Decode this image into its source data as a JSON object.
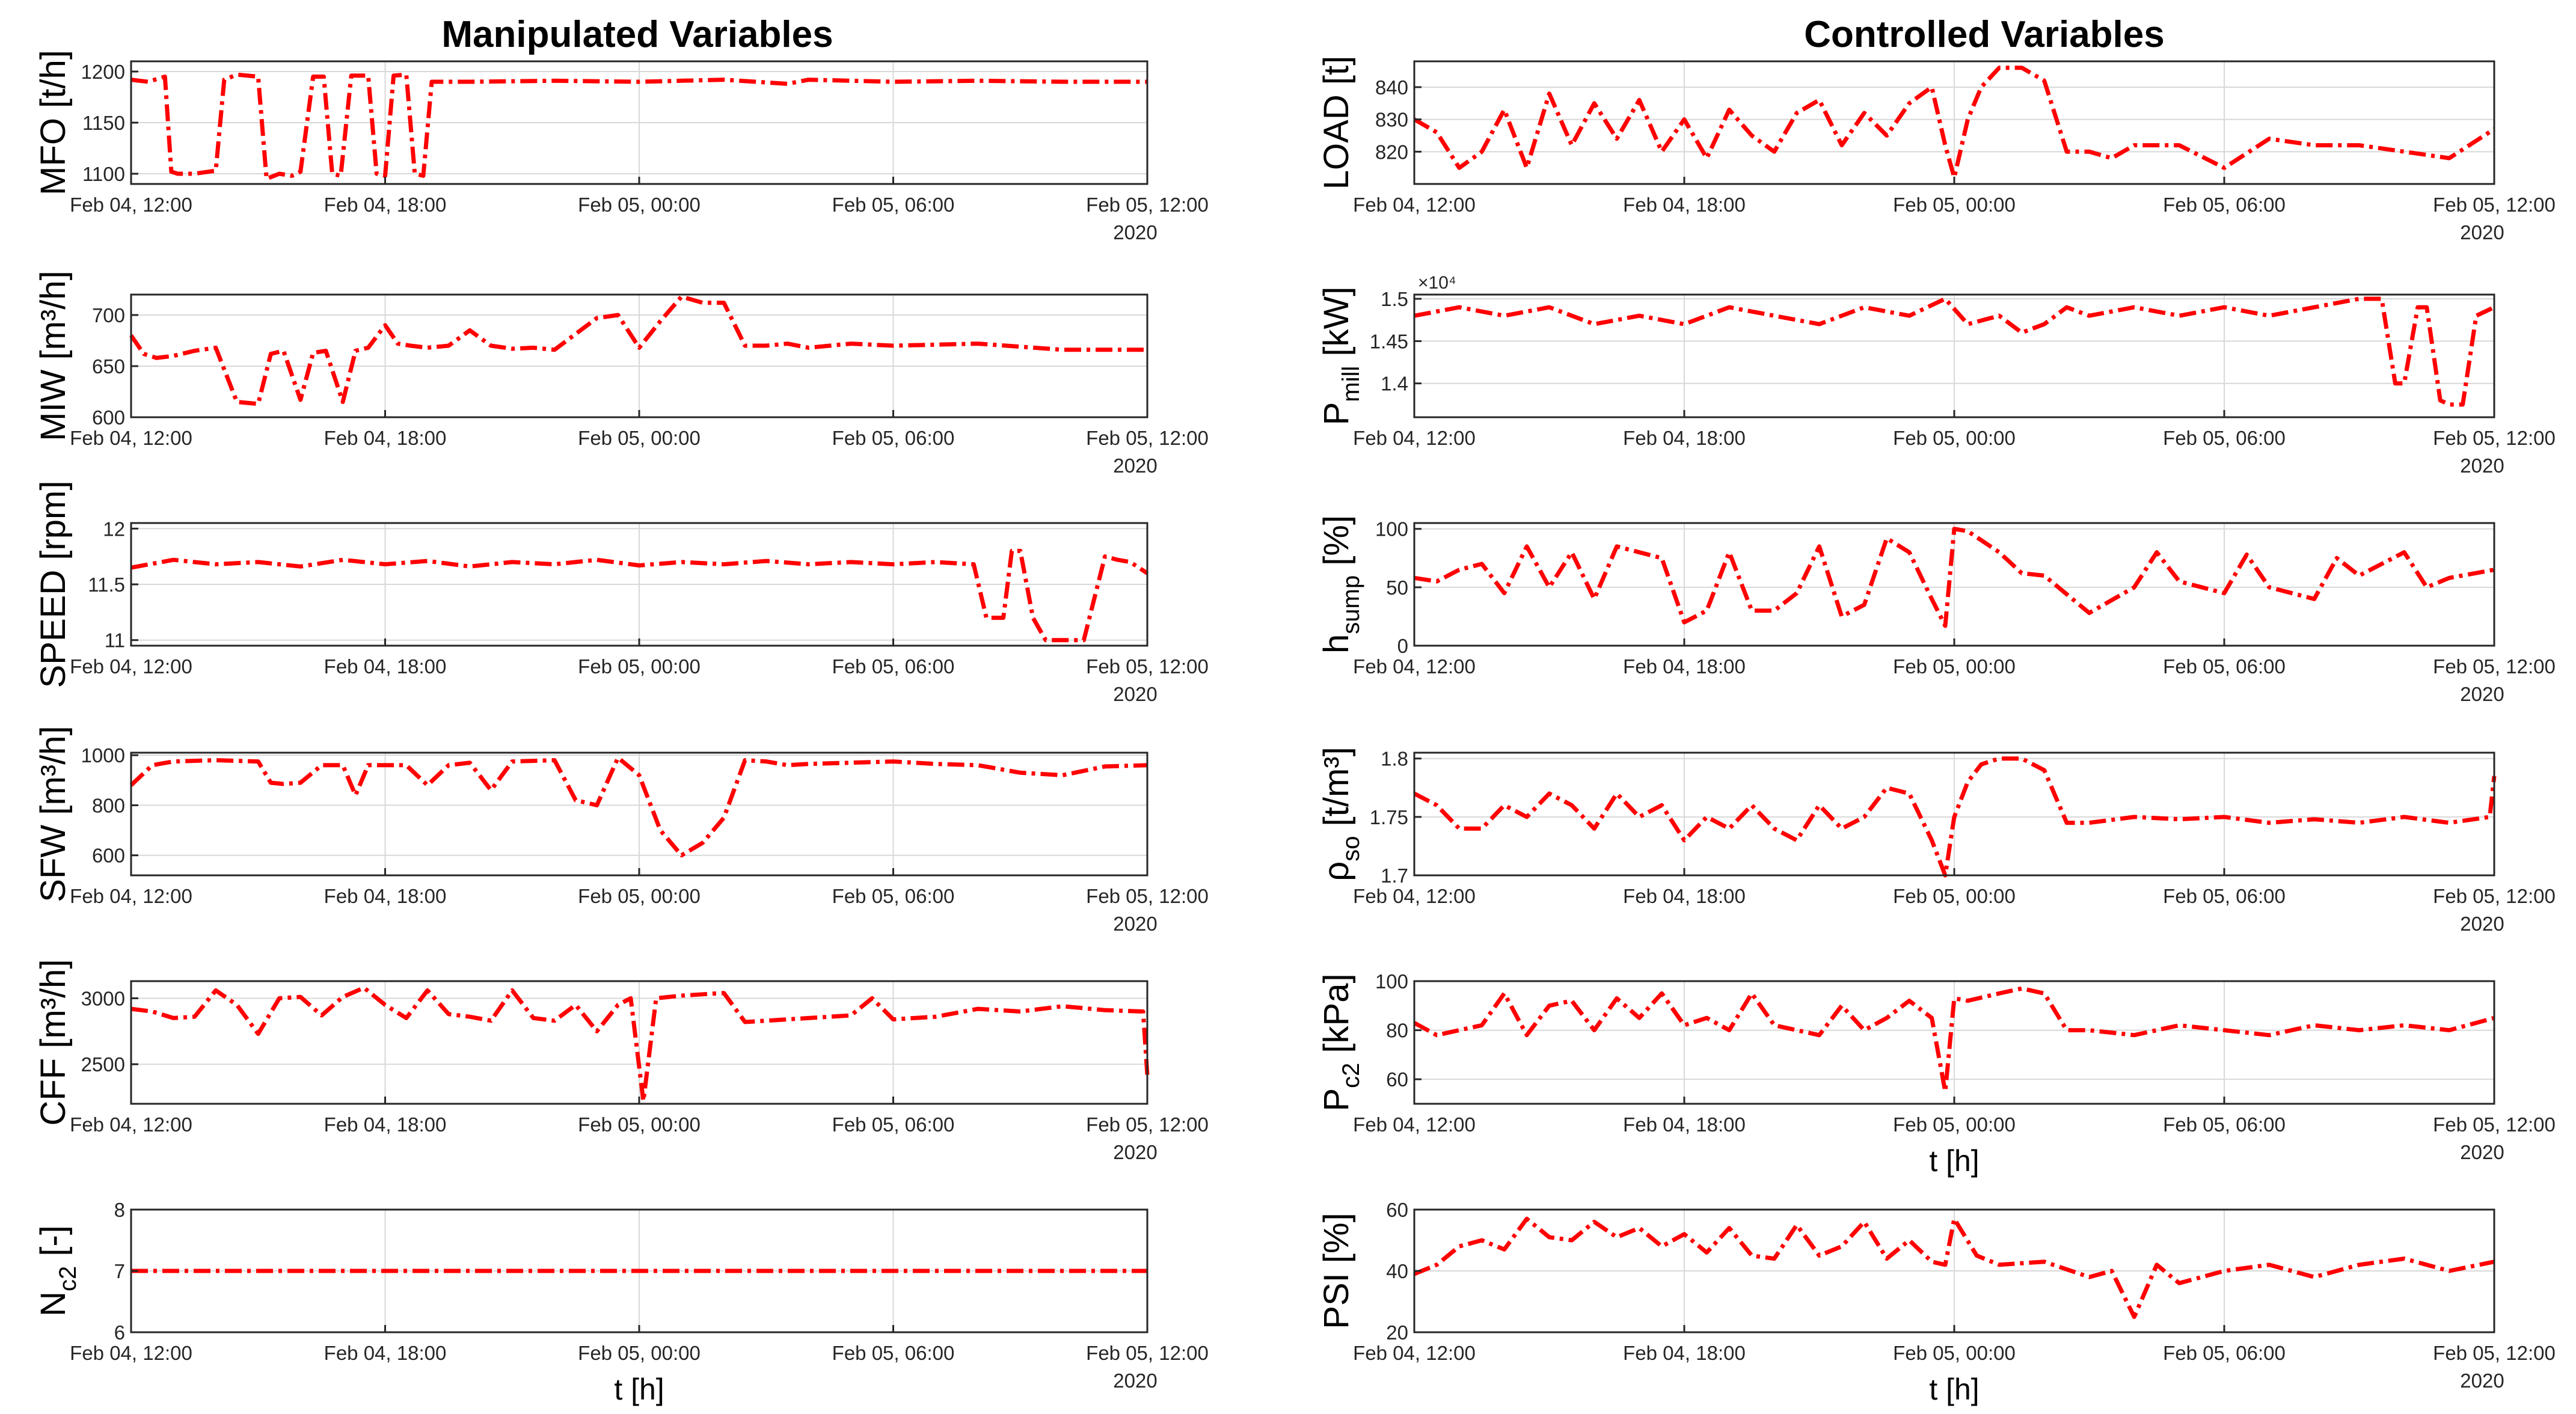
{
  "left_title": "Manipulated Variables",
  "right_title": "Controlled Variables",
  "x_tick_labels": [
    "Feb 04, 12:00",
    "Feb 04, 18:00",
    "Feb 05, 00:00",
    "Feb 05, 06:00",
    "Feb 05, 12:00"
  ],
  "x_year_label": "2020",
  "x_axis_label": "t [h]",
  "series_color": "#ff0000",
  "chart_data": [
    {
      "type": "line",
      "id": "mfo",
      "column": "left",
      "ylabel": "MFO [t/h]",
      "ylabel_main": "MFO [t/h]",
      "ylabel_sub": "",
      "ylim": [
        1090,
        1210
      ],
      "yticks": [
        1100,
        1150,
        1200
      ],
      "multiplier": "",
      "show_year": true,
      "show_xlabel": false,
      "x_hours": [
        0,
        0.4,
        0.8,
        0.95,
        1.1,
        1.5,
        2.0,
        2.2,
        2.5,
        3.0,
        3.2,
        3.5,
        3.8,
        4.0,
        4.3,
        4.55,
        4.75,
        4.95,
        5.2,
        5.6,
        5.8,
        6.0,
        6.2,
        6.5,
        6.7,
        6.9,
        7.1,
        8,
        10,
        12,
        14,
        15.5,
        16,
        18,
        20,
        22,
        24
      ],
      "values": [
        1192,
        1190,
        1195,
        1102,
        1100,
        1100,
        1103,
        1192,
        1197,
        1195,
        1095,
        1100,
        1098,
        1102,
        1195,
        1195,
        1100,
        1098,
        1196,
        1196,
        1100,
        1098,
        1196,
        1197,
        1100,
        1098,
        1190,
        1190,
        1191,
        1190,
        1192,
        1188,
        1192,
        1190,
        1191,
        1190,
        1190
      ]
    },
    {
      "type": "line",
      "id": "miw",
      "column": "left",
      "ylabel": "MIW [m3/h]",
      "ylabel_main": "MIW [m³/h]",
      "ylabel_sub": "",
      "ylim": [
        600,
        720
      ],
      "yticks": [
        600,
        650,
        700
      ],
      "multiplier": "",
      "show_year": true,
      "show_xlabel": false,
      "x_hours": [
        0,
        0.3,
        0.6,
        1,
        1.5,
        2.0,
        2.5,
        3.0,
        3.3,
        3.6,
        4.0,
        4.3,
        4.6,
        5.0,
        5.3,
        5.6,
        6.0,
        6.3,
        6.6,
        7.0,
        7.5,
        8.0,
        8.5,
        9.0,
        9.5,
        10,
        11,
        11.5,
        12,
        12.5,
        13,
        13.5,
        14,
        14.5,
        15,
        15.5,
        16,
        17,
        18,
        20,
        22,
        24
      ],
      "values": [
        680,
        662,
        658,
        660,
        665,
        668,
        615,
        613,
        662,
        665,
        617,
        663,
        665,
        615,
        665,
        668,
        690,
        672,
        670,
        668,
        670,
        685,
        670,
        667,
        668,
        666,
        697,
        700,
        668,
        694,
        718,
        712,
        712,
        670,
        670,
        672,
        668,
        672,
        670,
        672,
        666,
        666
      ]
    },
    {
      "type": "line",
      "id": "speed",
      "column": "left",
      "ylabel": "SPEED [rpm]",
      "ylabel_main": "SPEED [rpm]",
      "ylabel_sub": "",
      "ylim": [
        10.95,
        12.05
      ],
      "yticks": [
        11,
        11.5,
        12
      ],
      "multiplier": "",
      "show_year": true,
      "show_xlabel": false,
      "x_hours": [
        0,
        1,
        2,
        3,
        4,
        5,
        6,
        7,
        8,
        9,
        10,
        11,
        12,
        13,
        14,
        15,
        16,
        17,
        18,
        19,
        19.9,
        20.2,
        20.6,
        20.8,
        21.0,
        21.3,
        21.6,
        22.2,
        22.5,
        23.0,
        23.3,
        23.6,
        24
      ],
      "values": [
        11.65,
        11.72,
        11.68,
        11.7,
        11.66,
        11.72,
        11.68,
        11.71,
        11.66,
        11.7,
        11.68,
        11.72,
        11.67,
        11.7,
        11.68,
        11.71,
        11.68,
        11.7,
        11.68,
        11.7,
        11.68,
        11.2,
        11.2,
        11.8,
        11.8,
        11.2,
        11.0,
        11.0,
        11.0,
        11.75,
        11.72,
        11.7,
        11.6
      ]
    },
    {
      "type": "line",
      "id": "sfw",
      "column": "left",
      "ylabel": "SFW [m3/h]",
      "ylabel_main": "SFW [m³/h]",
      "ylabel_sub": "",
      "ylim": [
        520,
        1010
      ],
      "yticks": [
        600,
        800,
        1000
      ],
      "multiplier": "",
      "show_year": true,
      "show_xlabel": false,
      "x_hours": [
        0,
        0.5,
        1,
        2,
        3,
        3.3,
        3.6,
        4.0,
        4.5,
        5.0,
        5.3,
        5.6,
        6.0,
        6.5,
        7,
        7.5,
        8.0,
        8.5,
        9,
        10,
        10.5,
        11,
        11.5,
        12,
        12.5,
        13,
        13.5,
        14,
        14.5,
        15,
        15.5,
        16,
        17,
        18,
        19,
        20,
        21,
        22,
        23,
        24
      ],
      "values": [
        880,
        960,
        975,
        980,
        975,
        890,
        885,
        890,
        960,
        960,
        840,
        960,
        960,
        960,
        880,
        960,
        970,
        860,
        975,
        980,
        820,
        800,
        990,
        920,
        700,
        600,
        650,
        750,
        980,
        975,
        960,
        965,
        970,
        975,
        965,
        960,
        930,
        920,
        955,
        960
      ]
    },
    {
      "type": "line",
      "id": "cff",
      "column": "left",
      "ylabel": "CFF [m3/h]",
      "ylabel_main": "CFF [m³/h]",
      "ylabel_sub": "",
      "ylim": [
        2200,
        3130
      ],
      "yticks": [
        2500,
        3000
      ],
      "multiplier": "",
      "show_year": true,
      "show_xlabel": false,
      "x_hours": [
        0,
        0.5,
        1,
        1.5,
        2,
        2.5,
        3.0,
        3.5,
        4.0,
        4.5,
        5.0,
        5.5,
        6.0,
        6.5,
        7.0,
        7.5,
        8.0,
        8.5,
        9.0,
        9.5,
        10,
        10.5,
        11,
        11.5,
        11.8,
        12.1,
        12.4,
        13,
        14,
        14.5,
        15,
        16,
        17,
        17.5,
        18,
        19,
        20,
        21,
        22,
        23,
        23.9,
        24
      ],
      "values": [
        2920,
        2900,
        2850,
        2860,
        3060,
        2950,
        2730,
        3000,
        3010,
        2870,
        3010,
        3080,
        2950,
        2850,
        3060,
        2880,
        2860,
        2830,
        3060,
        2850,
        2830,
        2950,
        2750,
        2950,
        3000,
        2220,
        3000,
        3020,
        3040,
        2820,
        2830,
        2850,
        2870,
        3000,
        2840,
        2860,
        2920,
        2900,
        2940,
        2910,
        2900,
        2420
      ]
    },
    {
      "type": "line",
      "id": "nc2",
      "column": "left",
      "ylabel": "Nc2 [-]",
      "ylabel_main": "N",
      "ylabel_sub": "c2",
      "ylabel_tail": " [-]",
      "ylim": [
        6,
        8
      ],
      "yticks": [
        6,
        7,
        8
      ],
      "multiplier": "",
      "show_year": true,
      "show_xlabel": true,
      "x_hours": [
        0,
        24
      ],
      "values": [
        7,
        7
      ]
    },
    {
      "type": "line",
      "id": "load",
      "column": "right",
      "ylabel": "LOAD [t]",
      "ylabel_main": "LOAD [t]",
      "ylabel_sub": "",
      "ylim": [
        810,
        848
      ],
      "yticks": [
        820,
        830,
        840
      ],
      "multiplier": "",
      "show_year": true,
      "show_xlabel": false,
      "x_hours": [
        0,
        0.5,
        1,
        1.5,
        2,
        2.5,
        3.0,
        3.5,
        4.0,
        4.5,
        5.0,
        5.5,
        6.0,
        6.5,
        7.0,
        7.5,
        8.0,
        8.5,
        9.0,
        9.5,
        10,
        10.5,
        11,
        11.5,
        11.8,
        12.0,
        12.3,
        12.6,
        13,
        13.5,
        14,
        14.5,
        15,
        15.5,
        16,
        17,
        18,
        19,
        20,
        21,
        22,
        23,
        24
      ],
      "values": [
        830,
        826,
        815,
        820,
        833,
        815,
        838,
        822,
        835,
        824,
        836,
        820,
        830,
        818,
        833,
        825,
        820,
        832,
        836,
        822,
        832,
        825,
        835,
        840,
        822,
        812,
        830,
        840,
        846,
        846,
        842,
        820,
        820,
        818,
        822,
        822,
        815,
        824,
        822,
        822,
        820,
        818,
        827
      ]
    },
    {
      "type": "line",
      "id": "pmill",
      "column": "right",
      "ylabel": "Pmill [kW]",
      "ylabel_main": "P",
      "ylabel_sub": "mill",
      "ylabel_tail": " [kW]",
      "ylim": [
        1.36,
        1.505
      ],
      "yticks": [
        1.4,
        1.45,
        1.5
      ],
      "multiplier": "×10⁴",
      "show_year": true,
      "show_xlabel": false,
      "x_hours": [
        0,
        1,
        2,
        3,
        4,
        5,
        6,
        7,
        8,
        9,
        10,
        11,
        11.8,
        12.3,
        13,
        13.5,
        14,
        14.5,
        15,
        16,
        17,
        18,
        19,
        20,
        21,
        21.5,
        21.8,
        22.0,
        22.3,
        22.5,
        22.8,
        23.0,
        23.3,
        23.6,
        24
      ],
      "values": [
        1.48,
        1.49,
        1.48,
        1.49,
        1.47,
        1.48,
        1.47,
        1.49,
        1.48,
        1.47,
        1.49,
        1.48,
        1.5,
        1.47,
        1.48,
        1.46,
        1.47,
        1.49,
        1.48,
        1.49,
        1.48,
        1.49,
        1.48,
        1.49,
        1.5,
        1.5,
        1.4,
        1.4,
        1.49,
        1.49,
        1.38,
        1.375,
        1.375,
        1.48,
        1.49
      ]
    },
    {
      "type": "line",
      "id": "hsump",
      "column": "right",
      "ylabel": "hsump [%]",
      "ylabel_main": "h",
      "ylabel_sub": "sump",
      "ylabel_tail": " [%]",
      "ylim": [
        0,
        105
      ],
      "yticks": [
        0,
        50,
        100
      ],
      "multiplier": "",
      "show_year": true,
      "show_xlabel": false,
      "x_hours": [
        0,
        0.5,
        1,
        1.5,
        2,
        2.5,
        3.0,
        3.5,
        4.0,
        4.5,
        5.0,
        5.5,
        6.0,
        6.5,
        7.0,
        7.5,
        8.0,
        8.5,
        9.0,
        9.5,
        10,
        10.5,
        11,
        11.5,
        11.8,
        12.0,
        12.3,
        13,
        13.5,
        14,
        15,
        16,
        16.5,
        17,
        18,
        18.5,
        19,
        20,
        20.5,
        21,
        22,
        22.5,
        23,
        24
      ],
      "values": [
        58,
        55,
        65,
        70,
        45,
        85,
        50,
        80,
        40,
        85,
        80,
        75,
        20,
        30,
        80,
        30,
        30,
        45,
        85,
        25,
        35,
        92,
        80,
        40,
        17,
        100,
        98,
        80,
        62,
        60,
        28,
        50,
        80,
        55,
        45,
        78,
        50,
        40,
        75,
        60,
        80,
        50,
        58,
        65
      ]
    },
    {
      "type": "line",
      "id": "rhoso",
      "column": "right",
      "ylabel": "ρso [t/m3]",
      "ylabel_main": "ρ",
      "ylabel_sub": "so",
      "ylabel_tail": " [t/m³]",
      "ylim": [
        1.7,
        1.805
      ],
      "yticks": [
        1.7,
        1.75,
        1.8
      ],
      "multiplier": "",
      "show_year": true,
      "show_xlabel": false,
      "x_hours": [
        0,
        0.5,
        1,
        1.5,
        2,
        2.5,
        3.0,
        3.5,
        4.0,
        4.5,
        5.0,
        5.5,
        6.0,
        6.5,
        7.0,
        7.5,
        8.0,
        8.5,
        9.0,
        9.5,
        10,
        10.5,
        11,
        11.5,
        11.8,
        12.0,
        12.3,
        12.6,
        13,
        13.5,
        14,
        14.5,
        15,
        16,
        17,
        18,
        19,
        20,
        21,
        22,
        23,
        23.9,
        24
      ],
      "values": [
        1.77,
        1.76,
        1.74,
        1.74,
        1.76,
        1.75,
        1.77,
        1.76,
        1.74,
        1.77,
        1.75,
        1.76,
        1.73,
        1.75,
        1.74,
        1.76,
        1.74,
        1.73,
        1.76,
        1.74,
        1.75,
        1.775,
        1.77,
        1.73,
        1.7,
        1.75,
        1.78,
        1.795,
        1.8,
        1.8,
        1.79,
        1.745,
        1.745,
        1.75,
        1.748,
        1.75,
        1.745,
        1.748,
        1.745,
        1.75,
        1.745,
        1.75,
        1.785
      ]
    },
    {
      "type": "line",
      "id": "pc2",
      "column": "right",
      "ylabel": "Pc2 [kPa]",
      "ylabel_main": "P",
      "ylabel_sub": "c2",
      "ylabel_tail": " [kPa]",
      "ylim": [
        50,
        100
      ],
      "yticks": [
        60,
        80,
        100
      ],
      "multiplier": "",
      "show_year": true,
      "show_xlabel": true,
      "x_hours": [
        0,
        0.5,
        1,
        1.5,
        2,
        2.5,
        3.0,
        3.5,
        4.0,
        4.5,
        5.0,
        5.5,
        6.0,
        6.5,
        7.0,
        7.5,
        8.0,
        8.5,
        9.0,
        9.5,
        10,
        10.5,
        11,
        11.5,
        11.8,
        12.0,
        12.3,
        13,
        13.5,
        14,
        14.5,
        15,
        16,
        17,
        18,
        19,
        20,
        21,
        22,
        23,
        24
      ],
      "values": [
        83,
        78,
        80,
        82,
        95,
        78,
        90,
        92,
        80,
        93,
        85,
        95,
        82,
        85,
        80,
        95,
        82,
        80,
        78,
        90,
        80,
        85,
        92,
        85,
        55,
        93,
        92,
        95,
        97,
        95,
        80,
        80,
        78,
        82,
        80,
        78,
        82,
        80,
        82,
        80,
        85
      ]
    },
    {
      "type": "line",
      "id": "psi",
      "column": "right",
      "ylabel": "PSI [%]",
      "ylabel_main": "PSI [%]",
      "ylabel_sub": "",
      "ylim": [
        20,
        60
      ],
      "yticks": [
        20,
        40,
        60
      ],
      "multiplier": "",
      "show_year": true,
      "show_xlabel": true,
      "x_hours": [
        0,
        0.5,
        1,
        1.5,
        2,
        2.5,
        3.0,
        3.5,
        4.0,
        4.5,
        5.0,
        5.5,
        6.0,
        6.5,
        7.0,
        7.5,
        8.0,
        8.5,
        9.0,
        9.5,
        10,
        10.5,
        11,
        11.5,
        11.8,
        12.0,
        12.5,
        13,
        14,
        15,
        15.5,
        16,
        16.5,
        17,
        18,
        19,
        20,
        21,
        22,
        23,
        24
      ],
      "values": [
        39,
        42,
        48,
        50,
        47,
        57,
        51,
        50,
        56,
        51,
        54,
        48,
        52,
        46,
        54,
        45,
        44,
        55,
        45,
        48,
        56,
        44,
        50,
        43,
        42,
        57,
        45,
        42,
        43,
        38,
        40,
        25,
        42,
        36,
        40,
        42,
        38,
        42,
        44,
        40,
        43
      ]
    }
  ]
}
